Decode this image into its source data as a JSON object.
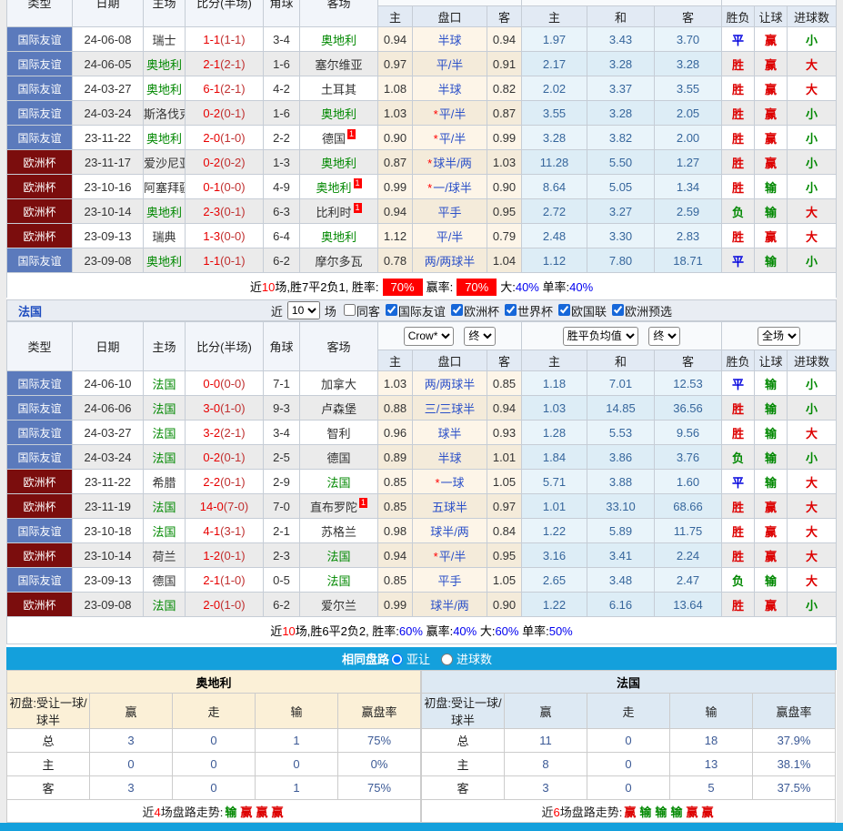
{
  "header_cols": {
    "type": "类型",
    "date": "日期",
    "home": "主场",
    "score": "比分(半场)",
    "corner": "角球",
    "away": "客场",
    "h": "主",
    "handicap": "盘口",
    "a": "客",
    "eh": "主",
    "ed": "和",
    "ea": "客",
    "result": "胜负",
    "let_goal": "让球",
    "goals": "进球数"
  },
  "selects": {
    "bookmaker": "Crow*",
    "final1": "终",
    "europe": "胜平负均值",
    "final2": "终",
    "scope": "全场"
  },
  "france_bar": {
    "title": "法国",
    "near": "近",
    "games": "10",
    "unit": "场",
    "checkboxes": [
      {
        "label": "同客",
        "checked": false
      },
      {
        "label": "国际友谊",
        "checked": true
      },
      {
        "label": "欧洲杯",
        "checked": true
      },
      {
        "label": "世界杯",
        "checked": true
      },
      {
        "label": "欧国联",
        "checked": true
      },
      {
        "label": "欧洲预选",
        "checked": true
      }
    ]
  },
  "austria": {
    "rows": [
      {
        "c": "国际友谊",
        "cc": "friendly",
        "d": "24-06-08",
        "h": {
          "t": "瑞士"
        },
        "ft": "1-1",
        "ht": "(1-1)",
        "cr": "3-4",
        "a": {
          "t": "奥地利",
          "g": 1
        },
        "o1": "0.94",
        "st": 0,
        "hc": "半球",
        "o2": "0.94",
        "e1": "1.97",
        "e2": "3.43",
        "e3": "3.70",
        "r1": [
          "平",
          "b"
        ],
        "r2": [
          "赢",
          "r"
        ],
        "r3": [
          "小",
          "g"
        ]
      },
      {
        "c": "国际友谊",
        "cc": "friendly",
        "d": "24-06-05",
        "h": {
          "t": "奥地利",
          "g": 1
        },
        "ft": "2-1",
        "ht": "(2-1)",
        "cr": "1-6",
        "a": {
          "t": "塞尔维亚"
        },
        "o1": "0.97",
        "st": 0,
        "hc": "平/半",
        "o2": "0.91",
        "e1": "2.17",
        "e2": "3.28",
        "e3": "3.28",
        "r1": [
          "胜",
          "r"
        ],
        "r2": [
          "赢",
          "r"
        ],
        "r3": [
          "大",
          "r"
        ]
      },
      {
        "c": "国际友谊",
        "cc": "friendly",
        "d": "24-03-27",
        "h": {
          "t": "奥地利",
          "g": 1
        },
        "ft": "6-1",
        "ht": "(2-1)",
        "cr": "4-2",
        "a": {
          "t": "土耳其"
        },
        "o1": "1.08",
        "st": 0,
        "hc": "半球",
        "o2": "0.82",
        "e1": "2.02",
        "e2": "3.37",
        "e3": "3.55",
        "r1": [
          "胜",
          "r"
        ],
        "r2": [
          "赢",
          "r"
        ],
        "r3": [
          "大",
          "r"
        ]
      },
      {
        "c": "国际友谊",
        "cc": "friendly",
        "d": "24-03-24",
        "h": {
          "t": "斯洛伐克"
        },
        "ft": "0-2",
        "ht": "(0-1)",
        "cr": "1-6",
        "a": {
          "t": "奥地利",
          "g": 1
        },
        "o1": "1.03",
        "st": 1,
        "hc": "平/半",
        "o2": "0.87",
        "e1": "3.55",
        "e2": "3.28",
        "e3": "2.05",
        "r1": [
          "胜",
          "r"
        ],
        "r2": [
          "赢",
          "r"
        ],
        "r3": [
          "小",
          "g"
        ]
      },
      {
        "c": "国际友谊",
        "cc": "friendly",
        "d": "23-11-22",
        "h": {
          "t": "奥地利",
          "g": 1
        },
        "ft": "2-0",
        "ht": "(1-0)",
        "cr": "2-2",
        "a": {
          "t": "德国",
          "bdg": "1"
        },
        "o1": "0.90",
        "st": 1,
        "hc": "平/半",
        "o2": "0.99",
        "e1": "3.28",
        "e2": "3.82",
        "e3": "2.00",
        "r1": [
          "胜",
          "r"
        ],
        "r2": [
          "赢",
          "r"
        ],
        "r3": [
          "小",
          "g"
        ]
      },
      {
        "c": "欧洲杯",
        "cc": "eurocup",
        "d": "23-11-17",
        "h": {
          "t": "爱沙尼亚"
        },
        "ft": "0-2",
        "ht": "(0-2)",
        "cr": "1-3",
        "a": {
          "t": "奥地利",
          "g": 1
        },
        "o1": "0.87",
        "st": 1,
        "hc": "球半/两",
        "o2": "1.03",
        "e1": "11.28",
        "e2": "5.50",
        "e3": "1.27",
        "r1": [
          "胜",
          "r"
        ],
        "r2": [
          "赢",
          "r"
        ],
        "r3": [
          "小",
          "g"
        ]
      },
      {
        "c": "欧洲杯",
        "cc": "eurocup",
        "d": "23-10-16",
        "h": {
          "t": "阿塞拜疆"
        },
        "ft": "0-1",
        "ht": "(0-0)",
        "cr": "4-9",
        "a": {
          "t": "奥地利",
          "g": 1,
          "bdg": "1"
        },
        "o1": "0.99",
        "st": 1,
        "hc": "一/球半",
        "o2": "0.90",
        "e1": "8.64",
        "e2": "5.05",
        "e3": "1.34",
        "r1": [
          "胜",
          "r"
        ],
        "r2": [
          "输",
          "g"
        ],
        "r3": [
          "小",
          "g"
        ]
      },
      {
        "c": "欧洲杯",
        "cc": "eurocup",
        "d": "23-10-14",
        "h": {
          "t": "奥地利",
          "g": 1
        },
        "ft": "2-3",
        "ht": "(0-1)",
        "cr": "6-3",
        "a": {
          "t": "比利时",
          "bdg": "1"
        },
        "o1": "0.94",
        "st": 0,
        "hc": "平手",
        "o2": "0.95",
        "e1": "2.72",
        "e2": "3.27",
        "e3": "2.59",
        "r1": [
          "负",
          "g"
        ],
        "r2": [
          "输",
          "g"
        ],
        "r3": [
          "大",
          "r"
        ]
      },
      {
        "c": "欧洲杯",
        "cc": "eurocup",
        "d": "23-09-13",
        "h": {
          "t": "瑞典"
        },
        "ft": "1-3",
        "ht": "(0-0)",
        "cr": "6-4",
        "a": {
          "t": "奥地利",
          "g": 1
        },
        "o1": "1.12",
        "st": 0,
        "hc": "平/半",
        "o2": "0.79",
        "e1": "2.48",
        "e2": "3.30",
        "e3": "2.83",
        "r1": [
          "胜",
          "r"
        ],
        "r2": [
          "赢",
          "r"
        ],
        "r3": [
          "大",
          "r"
        ]
      },
      {
        "c": "国际友谊",
        "cc": "friendly",
        "d": "23-09-08",
        "h": {
          "t": "奥地利",
          "g": 1
        },
        "ft": "1-1",
        "ht": "(0-1)",
        "cr": "6-2",
        "a": {
          "t": "摩尔多瓦"
        },
        "o1": "0.78",
        "st": 0,
        "hc": "两/两球半",
        "o2": "1.04",
        "e1": "1.12",
        "e2": "7.80",
        "e3": "18.71",
        "r1": [
          "平",
          "b"
        ],
        "r2": [
          "输",
          "g"
        ],
        "r3": [
          "小",
          "g"
        ]
      }
    ],
    "summary": [
      [
        "近",
        ""
      ],
      [
        "10",
        "r"
      ],
      [
        "场,胜7平2负1, 胜率:",
        ""
      ],
      [
        "70%",
        "box"
      ],
      [
        "赢率:",
        ""
      ],
      [
        "70%",
        "box"
      ],
      [
        "大:",
        ""
      ],
      [
        "40%",
        "bl"
      ],
      [
        " 单率:",
        ""
      ],
      [
        "40%",
        "bl"
      ]
    ]
  },
  "france": {
    "rows": [
      {
        "c": "国际友谊",
        "cc": "friendly",
        "d": "24-06-10",
        "h": {
          "t": "法国",
          "g": 1
        },
        "ft": "0-0",
        "ht": "(0-0)",
        "cr": "7-1",
        "a": {
          "t": "加拿大"
        },
        "o1": "1.03",
        "st": 0,
        "hc": "两/两球半",
        "o2": "0.85",
        "e1": "1.18",
        "e2": "7.01",
        "e3": "12.53",
        "r1": [
          "平",
          "b"
        ],
        "r2": [
          "输",
          "g"
        ],
        "r3": [
          "小",
          "g"
        ]
      },
      {
        "c": "国际友谊",
        "cc": "friendly",
        "d": "24-06-06",
        "h": {
          "t": "法国",
          "g": 1
        },
        "ft": "3-0",
        "ht": "(1-0)",
        "cr": "9-3",
        "a": {
          "t": "卢森堡"
        },
        "o1": "0.88",
        "st": 0,
        "hc": "三/三球半",
        "o2": "0.94",
        "e1": "1.03",
        "e2": "14.85",
        "e3": "36.56",
        "r1": [
          "胜",
          "r"
        ],
        "r2": [
          "输",
          "g"
        ],
        "r3": [
          "小",
          "g"
        ]
      },
      {
        "c": "国际友谊",
        "cc": "friendly",
        "d": "24-03-27",
        "h": {
          "t": "法国",
          "g": 1
        },
        "ft": "3-2",
        "ht": "(2-1)",
        "cr": "3-4",
        "a": {
          "t": "智利"
        },
        "o1": "0.96",
        "st": 0,
        "hc": "球半",
        "o2": "0.93",
        "e1": "1.28",
        "e2": "5.53",
        "e3": "9.56",
        "r1": [
          "胜",
          "r"
        ],
        "r2": [
          "输",
          "g"
        ],
        "r3": [
          "大",
          "r"
        ]
      },
      {
        "c": "国际友谊",
        "cc": "friendly",
        "d": "24-03-24",
        "h": {
          "t": "法国",
          "g": 1
        },
        "ft": "0-2",
        "ht": "(0-1)",
        "cr": "2-5",
        "a": {
          "t": "德国"
        },
        "o1": "0.89",
        "st": 0,
        "hc": "半球",
        "o2": "1.01",
        "e1": "1.84",
        "e2": "3.86",
        "e3": "3.76",
        "r1": [
          "负",
          "g"
        ],
        "r2": [
          "输",
          "g"
        ],
        "r3": [
          "小",
          "g"
        ]
      },
      {
        "c": "欧洲杯",
        "cc": "eurocup",
        "d": "23-11-22",
        "h": {
          "t": "希腊"
        },
        "ft": "2-2",
        "ht": "(0-1)",
        "cr": "2-9",
        "a": {
          "t": "法国",
          "g": 1
        },
        "o1": "0.85",
        "st": 1,
        "hc": "一球",
        "o2": "1.05",
        "e1": "5.71",
        "e2": "3.88",
        "e3": "1.60",
        "r1": [
          "平",
          "b"
        ],
        "r2": [
          "输",
          "g"
        ],
        "r3": [
          "大",
          "r"
        ]
      },
      {
        "c": "欧洲杯",
        "cc": "eurocup",
        "d": "23-11-19",
        "h": {
          "t": "法国",
          "g": 1
        },
        "ft": "14-0",
        "ht": "(7-0)",
        "cr": "7-0",
        "a": {
          "t": "直布罗陀",
          "bdg": "1"
        },
        "o1": "0.85",
        "st": 0,
        "hc": "五球半",
        "o2": "0.97",
        "e1": "1.01",
        "e2": "33.10",
        "e3": "68.66",
        "r1": [
          "胜",
          "r"
        ],
        "r2": [
          "赢",
          "r"
        ],
        "r3": [
          "大",
          "r"
        ]
      },
      {
        "c": "国际友谊",
        "cc": "friendly",
        "d": "23-10-18",
        "h": {
          "t": "法国",
          "g": 1
        },
        "ft": "4-1",
        "ht": "(3-1)",
        "cr": "2-1",
        "a": {
          "t": "苏格兰"
        },
        "o1": "0.98",
        "st": 0,
        "hc": "球半/两",
        "o2": "0.84",
        "e1": "1.22",
        "e2": "5.89",
        "e3": "11.75",
        "r1": [
          "胜",
          "r"
        ],
        "r2": [
          "赢",
          "r"
        ],
        "r3": [
          "大",
          "r"
        ]
      },
      {
        "c": "欧洲杯",
        "cc": "eurocup",
        "d": "23-10-14",
        "h": {
          "t": "荷兰"
        },
        "ft": "1-2",
        "ht": "(0-1)",
        "cr": "2-3",
        "a": {
          "t": "法国",
          "g": 1
        },
        "o1": "0.94",
        "st": 1,
        "hc": "平/半",
        "o2": "0.95",
        "e1": "3.16",
        "e2": "3.41",
        "e3": "2.24",
        "r1": [
          "胜",
          "r"
        ],
        "r2": [
          "赢",
          "r"
        ],
        "r3": [
          "大",
          "r"
        ]
      },
      {
        "c": "国际友谊",
        "cc": "friendly",
        "d": "23-09-13",
        "h": {
          "t": "德国"
        },
        "ft": "2-1",
        "ht": "(1-0)",
        "cr": "0-5",
        "a": {
          "t": "法国",
          "g": 1
        },
        "o1": "0.85",
        "st": 0,
        "hc": "平手",
        "o2": "1.05",
        "e1": "2.65",
        "e2": "3.48",
        "e3": "2.47",
        "r1": [
          "负",
          "g"
        ],
        "r2": [
          "输",
          "g"
        ],
        "r3": [
          "大",
          "r"
        ]
      },
      {
        "c": "欧洲杯",
        "cc": "eurocup",
        "d": "23-09-08",
        "h": {
          "t": "法国",
          "g": 1
        },
        "ft": "2-0",
        "ht": "(1-0)",
        "cr": "6-2",
        "a": {
          "t": "爱尔兰"
        },
        "o1": "0.99",
        "st": 0,
        "hc": "球半/两",
        "o2": "0.90",
        "e1": "1.22",
        "e2": "6.16",
        "e3": "13.64",
        "r1": [
          "胜",
          "r"
        ],
        "r2": [
          "赢",
          "r"
        ],
        "r3": [
          "小",
          "g"
        ]
      }
    ],
    "summary": [
      [
        "近",
        ""
      ],
      [
        "10",
        "r"
      ],
      [
        "场,胜6平2负2, 胜率:",
        ""
      ],
      [
        "60%",
        "bl"
      ],
      [
        " 赢率:",
        ""
      ],
      [
        "40%",
        "bl"
      ],
      [
        " 大:",
        ""
      ],
      [
        "60%",
        "bl"
      ],
      [
        " 单率:",
        ""
      ],
      [
        "50%",
        "bl"
      ]
    ]
  },
  "path_bar": {
    "title": "相同盘路",
    "options": [
      {
        "label": "亚让",
        "checked": true
      },
      {
        "label": "进球数",
        "checked": false
      }
    ]
  },
  "compare": {
    "left": {
      "title": "奥地利",
      "theme": "beige",
      "label": "初盘:受让一球/球半",
      "cols": [
        "赢",
        "走",
        "输",
        "赢盘率"
      ],
      "rows": [
        [
          "总",
          "3",
          "0",
          "1",
          "75%"
        ],
        [
          "主",
          "0",
          "0",
          "0",
          "0%"
        ],
        [
          "客",
          "3",
          "0",
          "1",
          "75%"
        ]
      ],
      "trend_pre": "近",
      "trend_n": "4",
      "trend_post": "场盘路走势:",
      "trend": [
        [
          "输",
          "g"
        ],
        [
          "赢",
          "r"
        ],
        [
          "赢",
          "r"
        ],
        [
          "赢",
          "r"
        ]
      ]
    },
    "right": {
      "title": "法国",
      "theme": "blue",
      "label": "初盘:受让一球/球半",
      "cols": [
        "赢",
        "走",
        "输",
        "赢盘率"
      ],
      "rows": [
        [
          "总",
          "11",
          "0",
          "18",
          "37.9%"
        ],
        [
          "主",
          "8",
          "0",
          "13",
          "38.1%"
        ],
        [
          "客",
          "3",
          "0",
          "5",
          "37.5%"
        ]
      ],
      "trend_pre": "近",
      "trend_n": "6",
      "trend_post": "场盘路走势:",
      "trend": [
        [
          "赢",
          "r"
        ],
        [
          "输",
          "g"
        ],
        [
          "输",
          "g"
        ],
        [
          "输",
          "g"
        ],
        [
          "赢",
          "r"
        ],
        [
          "赢",
          "r"
        ]
      ]
    }
  }
}
